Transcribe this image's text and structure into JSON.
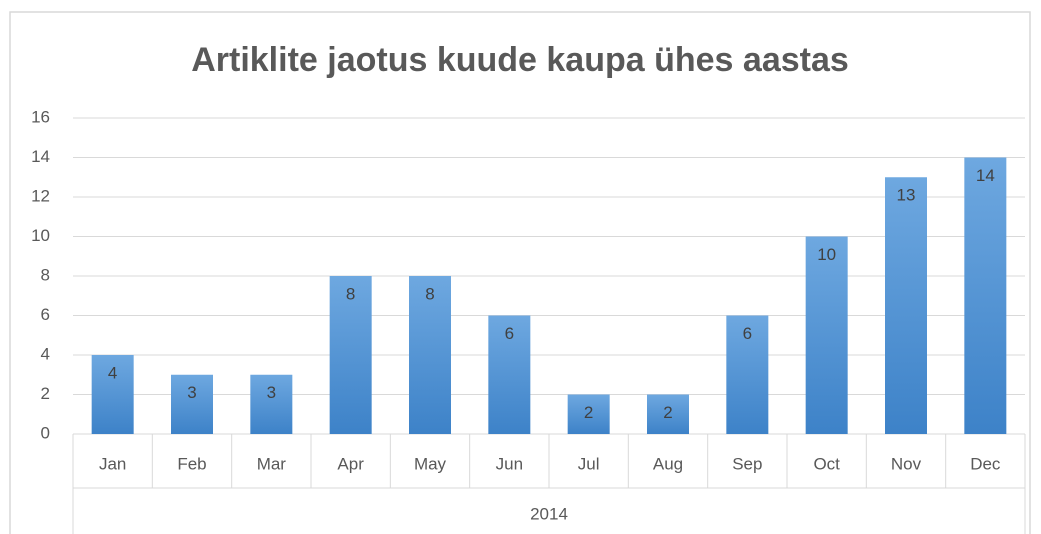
{
  "chart_data": {
    "type": "bar",
    "title": "Artiklite jaotus kuude kaupa ühes aastas",
    "categories": [
      "Jan",
      "Feb",
      "Mar",
      "Apr",
      "May",
      "Jun",
      "Jul",
      "Aug",
      "Sep",
      "Oct",
      "Nov",
      "Dec"
    ],
    "category_group": "2014",
    "values": [
      4,
      3,
      3,
      8,
      8,
      6,
      2,
      2,
      6,
      10,
      13,
      14
    ],
    "color": "#5b9bd5",
    "ylim": [
      0,
      16
    ],
    "yticks": [
      0,
      2,
      4,
      6,
      8,
      10,
      12,
      14,
      16
    ],
    "grid": true,
    "data_labels": true
  }
}
